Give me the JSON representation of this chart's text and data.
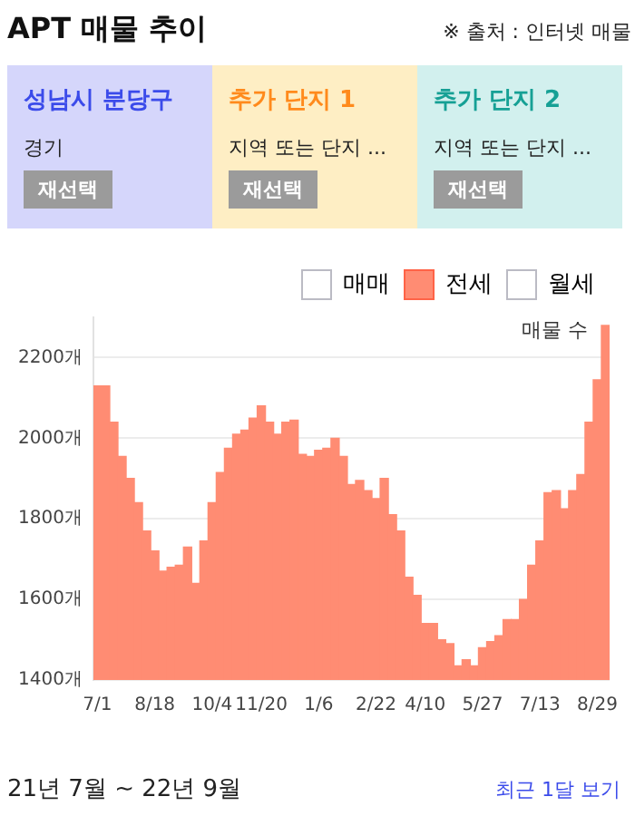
{
  "chart_data": {
    "type": "bar",
    "title": "APT 매물 추이",
    "annotations": [
      "※ 출처 : 인터넷 매물",
      "성남시 분당구",
      "경기",
      "재선택",
      "추가 단지 1",
      "지역 또는 단지 ...",
      "재선택",
      "추가 단지 2",
      "지역 또는 단지 ...",
      "재선택",
      "매물 수",
      "21년 7월 ~ 22년 9월",
      "최근 1달 보기"
    ],
    "categories": [
      "7/1",
      null,
      null,
      null,
      null,
      null,
      null,
      "8/18",
      null,
      null,
      null,
      null,
      null,
      null,
      "10/4",
      null,
      null,
      null,
      null,
      null,
      "11/20",
      null,
      null,
      null,
      null,
      null,
      null,
      "1/6",
      null,
      null,
      null,
      null,
      null,
      null,
      "2/22",
      null,
      null,
      null,
      null,
      null,
      "4/10",
      null,
      null,
      null,
      null,
      null,
      null,
      "5/27",
      null,
      null,
      null,
      null,
      null,
      null,
      "7/13",
      null,
      null,
      null,
      null,
      null,
      null,
      "8/29",
      null
    ],
    "series": [
      {
        "name": "매매",
        "color": "#ffffff",
        "values": [
          null,
          null,
          null,
          null,
          null,
          null,
          null,
          null,
          null,
          null,
          null,
          null,
          null,
          null,
          null,
          null,
          null,
          null,
          null,
          null,
          null,
          null,
          null,
          null,
          null,
          null,
          null,
          null,
          null,
          null,
          null,
          null,
          null,
          null,
          null,
          null,
          null,
          null,
          null,
          null,
          null,
          null,
          null,
          null,
          null,
          null,
          null,
          null,
          null,
          null,
          null,
          null,
          null,
          null,
          null,
          null,
          null,
          null,
          null,
          null,
          null,
          null,
          null
        ]
      },
      {
        "name": "전세",
        "color": "#ff8c73",
        "values": [
          2130,
          2130,
          2040,
          1955,
          1900,
          1840,
          1770,
          1720,
          1670,
          1680,
          1685,
          1730,
          1640,
          1745,
          1840,
          1915,
          1975,
          2010,
          2020,
          2050,
          2080,
          2040,
          2010,
          2040,
          2045,
          1960,
          1955,
          1970,
          1975,
          2000,
          1955,
          1885,
          1895,
          1870,
          1850,
          1900,
          1810,
          1770,
          1655,
          1610,
          1540,
          1540,
          1500,
          1490,
          1435,
          1450,
          1435,
          1480,
          1495,
          1510,
          1550,
          1550,
          1600,
          1685,
          1745,
          1865,
          1870,
          1825,
          1870,
          1910,
          2040,
          2145,
          2280
        ]
      },
      {
        "name": "월세",
        "color": "#ffffff",
        "values": [
          null,
          null,
          null,
          null,
          null,
          null,
          null,
          null,
          null,
          null,
          null,
          null,
          null,
          null,
          null,
          null,
          null,
          null,
          null,
          null,
          null,
          null,
          null,
          null,
          null,
          null,
          null,
          null,
          null,
          null,
          null,
          null,
          null,
          null,
          null,
          null,
          null,
          null,
          null,
          null,
          null,
          null,
          null,
          null,
          null,
          null,
          null,
          null,
          null,
          null,
          null,
          null,
          null,
          null,
          null,
          null,
          null,
          null,
          null,
          null,
          null,
          null,
          null
        ]
      }
    ],
    "ylim": [
      1400,
      2300
    ],
    "yticks": [
      {
        "value": 1400,
        "label": "1400개"
      },
      {
        "value": 1600,
        "label": "1600개"
      },
      {
        "value": 1800,
        "label": "1800개"
      },
      {
        "value": 2000,
        "label": "2000개"
      },
      {
        "value": 2200,
        "label": "2200개"
      }
    ],
    "grid": "y",
    "legend": "top right"
  }
}
